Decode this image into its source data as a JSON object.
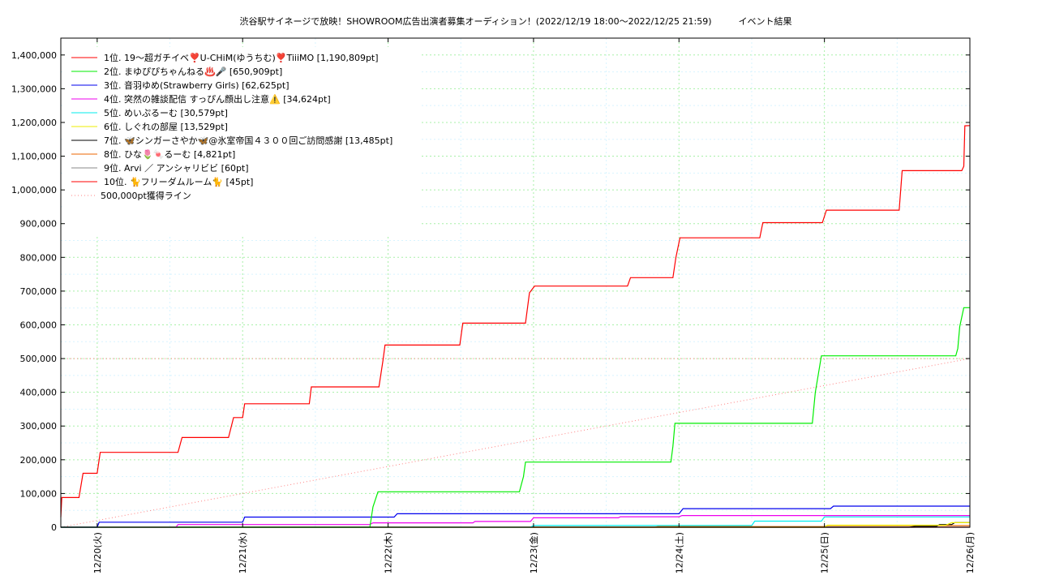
{
  "chart_data": {
    "type": "line",
    "title": "渋谷駅サイネージで放映！SHOWROOM広告出演者募集オーディション！(2022/12/19 18:00～2022/12/25 21:59)　　　イベント結果",
    "xlabel": "",
    "ylabel": "",
    "x_range": [
      "2022-12-19 18:00",
      "2022-12-26 00:00"
    ],
    "x_tick_labels": [
      "12/20(火)",
      "12/21(水)",
      "12/22(木)",
      "12/23(金)",
      "12/24(土)",
      "12/25(日)",
      "12/26(月)"
    ],
    "x_tick_dates": [
      "2022-12-20 00:00",
      "2022-12-21 00:00",
      "2022-12-22 00:00",
      "2022-12-23 00:00",
      "2022-12-24 00:00",
      "2022-12-25 00:00",
      "2022-12-26 00:00"
    ],
    "ylim": [
      0,
      1450000
    ],
    "y_ticks": [
      0,
      100000,
      200000,
      300000,
      400000,
      500000,
      600000,
      700000,
      800000,
      900000,
      1000000,
      1100000,
      1200000,
      1300000,
      1400000
    ],
    "y_tick_labels": [
      "0",
      "100,000",
      "200,000",
      "300,000",
      "400,000",
      "500,000",
      "600,000",
      "700,000",
      "800,000",
      "900,000",
      "1,000,000",
      "1,100,000",
      "1,200,000",
      "1,300,000",
      "1,400,000"
    ],
    "grid": true,
    "legend_position": "top-left",
    "series": [
      {
        "name": "1位. 19〜超ガチイベ❣️U-CHiM(ゆうちむ)❣️TiiiMO [1,190,809pt]",
        "color": "#ff0000",
        "points": [
          [
            "2022-12-19 18:00",
            30000
          ],
          [
            "2022-12-19 18:10",
            88000
          ],
          [
            "2022-12-19 21:00",
            88000
          ],
          [
            "2022-12-19 21:40",
            160000
          ],
          [
            "2022-12-20 00:00",
            160000
          ],
          [
            "2022-12-20 00:30",
            222000
          ],
          [
            "2022-12-20 13:20",
            222000
          ],
          [
            "2022-12-20 14:00",
            266000
          ],
          [
            "2022-12-20 21:40",
            266000
          ],
          [
            "2022-12-20 22:30",
            325000
          ],
          [
            "2022-12-21 00:00",
            325000
          ],
          [
            "2022-12-21 00:20",
            366000
          ],
          [
            "2022-12-21 11:00",
            366000
          ],
          [
            "2022-12-21 11:20",
            416000
          ],
          [
            "2022-12-21 22:30",
            416000
          ],
          [
            "2022-12-21 23:10",
            495000
          ],
          [
            "2022-12-21 23:30",
            540000
          ],
          [
            "2022-12-22 11:50",
            540000
          ],
          [
            "2022-12-22 12:20",
            605000
          ],
          [
            "2022-12-22 22:40",
            605000
          ],
          [
            "2022-12-22 23:20",
            695000
          ],
          [
            "2022-12-23 00:10",
            715000
          ],
          [
            "2022-12-23 15:30",
            715000
          ],
          [
            "2022-12-23 16:00",
            740000
          ],
          [
            "2022-12-23 23:00",
            740000
          ],
          [
            "2022-12-23 23:30",
            800000
          ],
          [
            "2022-12-24 00:10",
            858000
          ],
          [
            "2022-12-24 13:20",
            858000
          ],
          [
            "2022-12-24 13:50",
            903000
          ],
          [
            "2022-12-24 23:40",
            903000
          ],
          [
            "2022-12-25 00:20",
            940000
          ],
          [
            "2022-12-25 12:20",
            940000
          ],
          [
            "2022-12-25 12:50",
            1057000
          ],
          [
            "2022-12-25 22:40",
            1057000
          ],
          [
            "2022-12-25 23:00",
            1070000
          ],
          [
            "2022-12-25 23:10",
            1190000
          ],
          [
            "2022-12-26 00:00",
            1190809
          ]
        ]
      },
      {
        "name": "2位. まゆぴぴちゃんねる♨️🎤 [650,909pt]",
        "color": "#00ee00",
        "points": [
          [
            "2022-12-19 18:00",
            0
          ],
          [
            "2022-12-21 21:00",
            0
          ],
          [
            "2022-12-21 21:30",
            60000
          ],
          [
            "2022-12-21 22:20",
            105000
          ],
          [
            "2022-12-22 21:40",
            105000
          ],
          [
            "2022-12-22 22:20",
            150000
          ],
          [
            "2022-12-22 22:40",
            193000
          ],
          [
            "2022-12-23 22:40",
            193000
          ],
          [
            "2022-12-23 23:00",
            240000
          ],
          [
            "2022-12-23 23:20",
            308000
          ],
          [
            "2022-12-24 22:00",
            308000
          ],
          [
            "2022-12-24 22:30",
            400000
          ],
          [
            "2022-12-24 23:30",
            508000
          ],
          [
            "2022-12-25 21:40",
            508000
          ],
          [
            "2022-12-25 22:00",
            530000
          ],
          [
            "2022-12-25 22:20",
            595000
          ],
          [
            "2022-12-25 23:00",
            651000
          ],
          [
            "2022-12-26 00:00",
            650909
          ]
        ]
      },
      {
        "name": "3位. 音羽ゆめ(Strawberry Girls) [62,625pt]",
        "color": "#0000ee",
        "points": [
          [
            "2022-12-19 18:00",
            0
          ],
          [
            "2022-12-20 00:00",
            0
          ],
          [
            "2022-12-20 00:20",
            15000
          ],
          [
            "2022-12-21 00:00",
            15000
          ],
          [
            "2022-12-21 00:20",
            30000
          ],
          [
            "2022-12-22 01:00",
            30000
          ],
          [
            "2022-12-22 01:30",
            40000
          ],
          [
            "2022-12-24 00:00",
            40000
          ],
          [
            "2022-12-24 00:40",
            55000
          ],
          [
            "2022-12-25 01:00",
            55000
          ],
          [
            "2022-12-25 01:30",
            62625
          ],
          [
            "2022-12-26 00:00",
            62625
          ]
        ]
      },
      {
        "name": "4位. 突然の雑談配信 すっぴん顔出し注意⚠️ [34,624pt]",
        "color": "#ee00ee",
        "points": [
          [
            "2022-12-19 18:00",
            0
          ],
          [
            "2022-12-20 13:00",
            0
          ],
          [
            "2022-12-20 13:20",
            8000
          ],
          [
            "2022-12-21 21:00",
            8000
          ],
          [
            "2022-12-21 21:30",
            13000
          ],
          [
            "2022-12-22 14:00",
            13000
          ],
          [
            "2022-12-22 14:20",
            17000
          ],
          [
            "2022-12-22 23:30",
            17000
          ],
          [
            "2022-12-23 00:00",
            28000
          ],
          [
            "2022-12-23 14:00",
            28000
          ],
          [
            "2022-12-23 14:20",
            31000
          ],
          [
            "2022-12-24 00:00",
            31000
          ],
          [
            "2022-12-24 00:30",
            34624
          ],
          [
            "2022-12-26 00:00",
            34624
          ]
        ]
      },
      {
        "name": "5位. めいぷるーむ [30,579pt]",
        "color": "#00eeee",
        "points": [
          [
            "2022-12-19 18:00",
            0
          ],
          [
            "2022-12-22 23:30",
            0
          ],
          [
            "2022-12-23 00:00",
            5000
          ],
          [
            "2022-12-24 12:00",
            5000
          ],
          [
            "2022-12-24 12:30",
            18000
          ],
          [
            "2022-12-24 23:30",
            18000
          ],
          [
            "2022-12-25 00:00",
            30579
          ],
          [
            "2022-12-26 00:00",
            30579
          ]
        ]
      },
      {
        "name": "6位. しぐれの部屋 [13,529pt]",
        "color": "#eeee00",
        "points": [
          [
            "2022-12-19 18:00",
            0
          ],
          [
            "2022-12-25 00:00",
            0
          ],
          [
            "2022-12-25 00:30",
            6000
          ],
          [
            "2022-12-25 20:00",
            6000
          ],
          [
            "2022-12-25 21:00",
            13529
          ],
          [
            "2022-12-26 00:00",
            13529
          ]
        ]
      },
      {
        "name": "7位. 🦋シンガーさやか🦋@氷室帝国４３００回ご訪問感謝 [13,485pt]",
        "color": "#000000",
        "points": [
          [
            "2022-12-19 18:00",
            0
          ],
          [
            "2022-12-25 14:00",
            0
          ],
          [
            "2022-12-25 15:00",
            3000
          ],
          [
            "2022-12-25 18:30",
            3000
          ],
          [
            "2022-12-25 19:00",
            8000
          ],
          [
            "2022-12-25 21:00",
            8000
          ],
          [
            "2022-12-25 21:30",
            13485
          ],
          [
            "2022-12-26 00:00",
            13485
          ]
        ]
      },
      {
        "name": "8位. ひな🌷🍬るーむ [4,821pt]",
        "color": "#ee6600",
        "points": [
          [
            "2022-12-19 18:00",
            0
          ],
          [
            "2022-12-23 20:00",
            0
          ],
          [
            "2022-12-23 20:30",
            2000
          ],
          [
            "2022-12-25 00:00",
            2000
          ],
          [
            "2022-12-25 00:30",
            4821
          ],
          [
            "2022-12-26 00:00",
            4821
          ]
        ]
      },
      {
        "name": "9位. Arvi ／ アンシャリビビ [60pt]",
        "color": "#888888",
        "points": [
          [
            "2022-12-19 18:00",
            0
          ],
          [
            "2022-12-22 12:00",
            0
          ],
          [
            "2022-12-22 12:10",
            60
          ],
          [
            "2022-12-26 00:00",
            60
          ]
        ]
      },
      {
        "name": "10位. 🐈フリーダムルーム🐈 [45pt]",
        "color": "#ff0000",
        "points": [
          [
            "2022-12-19 18:00",
            0
          ],
          [
            "2022-12-21 12:00",
            0
          ],
          [
            "2022-12-21 12:10",
            45
          ],
          [
            "2022-12-26 00:00",
            45
          ]
        ]
      }
    ],
    "reference_line": {
      "name": "500,000pt獲得ライン",
      "color": "#ff8080",
      "points": [
        [
          "2022-12-19 18:00",
          0
        ],
        [
          "2022-12-26 00:00",
          500000
        ]
      ]
    }
  }
}
